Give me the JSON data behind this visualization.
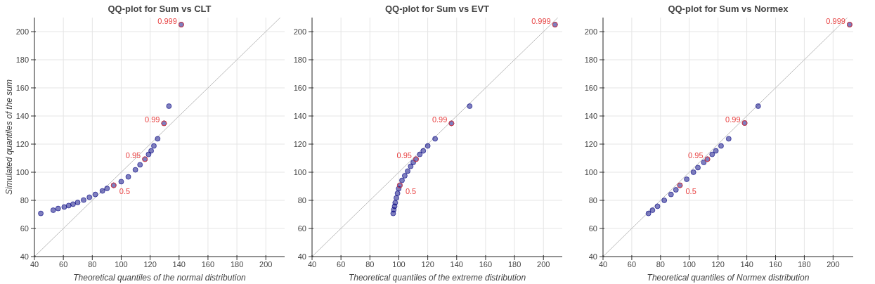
{
  "chart_data": [
    {
      "type": "scatter",
      "title": "QQ-plot for Sum vs CLT",
      "xlabel": "Theoretical quantiles of the normal distribution",
      "ylabel": "Simulated quantiles of the sum",
      "xlim": [
        40,
        213
      ],
      "ylim": [
        40,
        210
      ],
      "xticks": [
        40,
        60,
        80,
        100,
        120,
        140,
        160,
        180,
        200
      ],
      "yticks": [
        40,
        60,
        80,
        100,
        120,
        140,
        160,
        180,
        200
      ],
      "grid": true,
      "series": [
        {
          "type": "line",
          "color": "#bbbbbb",
          "x": [
            40,
            210
          ],
          "values": [
            40,
            210
          ]
        },
        {
          "marker": "circle",
          "color": "#000080",
          "x": [
            44.4,
            53,
            56.4,
            60.6,
            63.7,
            66.7,
            69.9,
            74,
            78,
            82.1,
            87,
            90.2,
            94.8,
            100,
            104.9,
            109.8,
            113,
            116.4,
            118.9,
            120.7,
            122.6,
            125.2,
            129.6,
            133,
            141.5
          ],
          "values": [
            70.7,
            73,
            74.2,
            75.3,
            76.3,
            77.3,
            78.5,
            80.2,
            82.2,
            84.2,
            86.7,
            88.5,
            90.7,
            93.3,
            96.7,
            101.7,
            105.3,
            109.3,
            112.7,
            115.2,
            118.7,
            123.8,
            134.8,
            147,
            205
          ]
        }
      ],
      "annotations": [
        {
          "text": "0.5",
          "x": 94.8,
          "y": 90.7
        },
        {
          "text": "0.95",
          "x": 116.4,
          "y": 109.3
        },
        {
          "text": "0.99",
          "x": 129.6,
          "y": 134.8
        },
        {
          "text": "0.999",
          "x": 141.5,
          "y": 205
        }
      ]
    },
    {
      "type": "scatter",
      "title": "QQ-plot for Sum vs EVT",
      "xlabel": "Theoretical quantiles of the extreme distribution",
      "xlim": [
        40,
        213
      ],
      "ylim": [
        40,
        210
      ],
      "xticks": [
        40,
        60,
        80,
        100,
        120,
        140,
        160,
        180,
        200
      ],
      "yticks": [
        40,
        60,
        80,
        100,
        120,
        140,
        160,
        180,
        200
      ],
      "grid": true,
      "series": [
        {
          "type": "line",
          "color": "#bbbbbb",
          "x": [
            40,
            210
          ],
          "values": [
            40,
            210
          ]
        },
        {
          "marker": "circle",
          "color": "#000080",
          "x": [
            96.1,
            96.5,
            97.1,
            97.5,
            98.3,
            99.1,
            99.9,
            100.7,
            102.2,
            104.1,
            106.1,
            108.2,
            110,
            111.9,
            114.5,
            116.9,
            120,
            125.1,
            136.4,
            149,
            208
          ],
          "values": [
            70.7,
            73.3,
            75.8,
            78.3,
            81.7,
            85,
            88.3,
            90.7,
            94.2,
            97.5,
            100.8,
            104.2,
            107,
            109.3,
            112.7,
            115.2,
            118.7,
            123.8,
            134.8,
            147,
            205
          ]
        }
      ],
      "annotations": [
        {
          "text": "0.5",
          "x": 100.7,
          "y": 90.7
        },
        {
          "text": "0.95",
          "x": 111.9,
          "y": 109.3
        },
        {
          "text": "0.99",
          "x": 136.4,
          "y": 134.8
        },
        {
          "text": "0.999",
          "x": 208,
          "y": 205
        }
      ]
    },
    {
      "type": "scatter",
      "title": "QQ-plot for Sum vs Normex",
      "xlabel": "Theoretical quantiles of Normex distribution",
      "xlim": [
        40,
        214
      ],
      "ylim": [
        40,
        210
      ],
      "xticks": [
        40,
        60,
        80,
        100,
        120,
        140,
        160,
        180,
        200
      ],
      "yticks": [
        40,
        60,
        80,
        100,
        120,
        140,
        160,
        180,
        200
      ],
      "grid": true,
      "series": [
        {
          "type": "line",
          "color": "#bbbbbb",
          "x": [
            40,
            210
          ],
          "values": [
            40,
            210
          ]
        },
        {
          "marker": "circle",
          "color": "#000080",
          "x": [
            71.6,
            74.4,
            77.9,
            82.6,
            87.3,
            90.7,
            93.5,
            98.2,
            102.9,
            106,
            110.1,
            112.6,
            115.9,
            118.5,
            122.1,
            127.4,
            138.5,
            147.9,
            211.5
          ],
          "values": [
            70.7,
            73,
            75.8,
            80,
            84.2,
            87.5,
            90.7,
            95,
            100,
            103.3,
            107,
            109.3,
            112.7,
            115.2,
            118.7,
            123.8,
            135,
            147,
            205
          ]
        }
      ],
      "annotations": [
        {
          "text": "0.5",
          "x": 93.5,
          "y": 90.7
        },
        {
          "text": "0.95",
          "x": 112.6,
          "y": 109.3
        },
        {
          "text": "0.99",
          "x": 138.5,
          "y": 135
        },
        {
          "text": "0.999",
          "x": 211.5,
          "y": 205
        }
      ]
    }
  ]
}
